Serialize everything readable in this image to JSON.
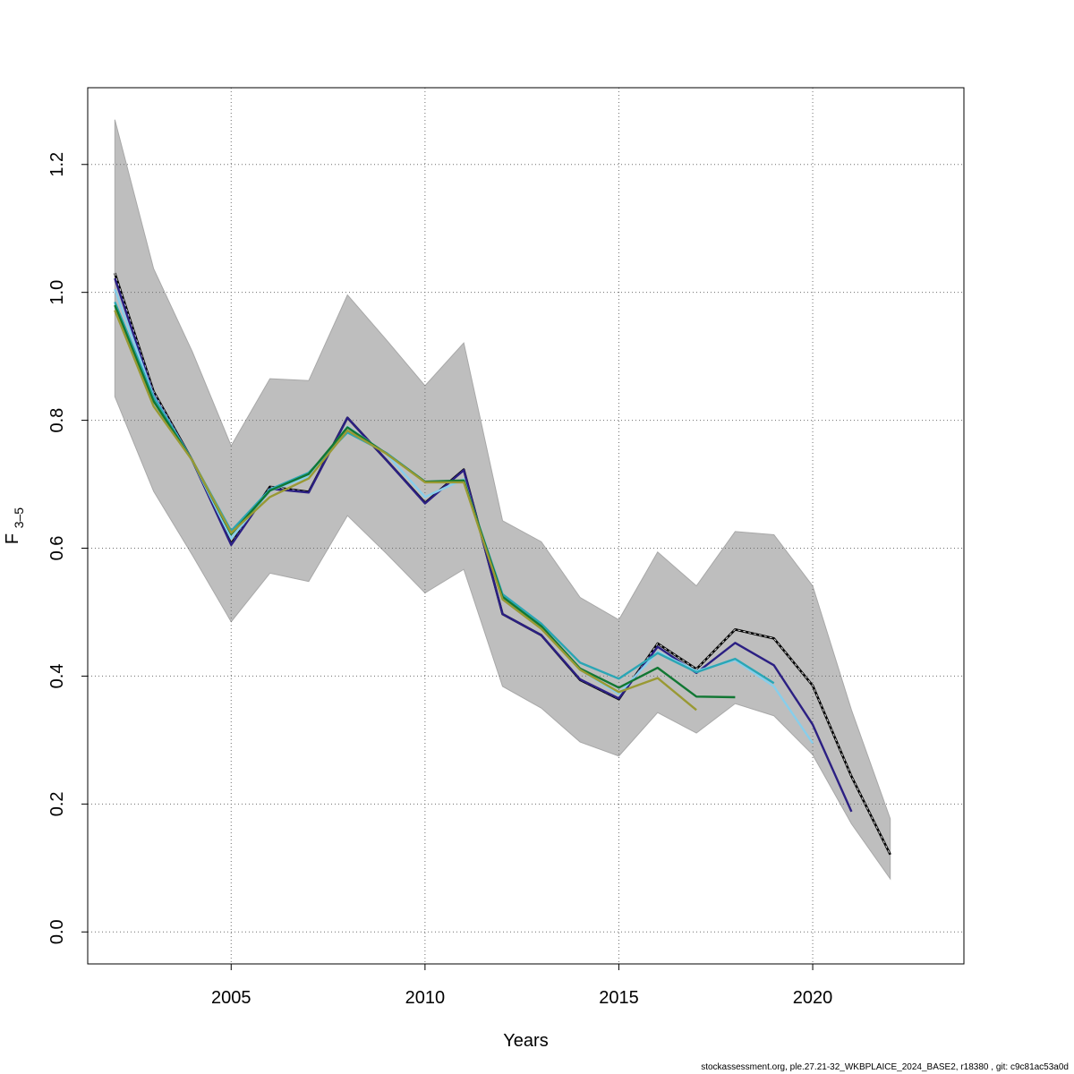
{
  "chart_data": {
    "type": "line",
    "title": "",
    "xlabel": "Years",
    "ylabel_main": "F",
    "ylabel_sub": "3–5",
    "xlim": [
      2001.3,
      2023.9
    ],
    "ylim": [
      -0.05,
      1.32
    ],
    "x_ticks": [
      2005,
      2010,
      2015,
      2020
    ],
    "y_ticks": [
      0.0,
      0.2,
      0.4,
      0.6,
      0.8,
      1.0,
      1.2
    ],
    "y_tick_labels": [
      "0.0",
      "0.2",
      "0.4",
      "0.6",
      "0.8",
      "1.0",
      "1.2"
    ],
    "grid": true,
    "band": {
      "x": [
        2002,
        2003,
        2004,
        2005,
        2006,
        2007,
        2008,
        2009,
        2010,
        2011,
        2012,
        2013,
        2014,
        2015,
        2016,
        2017,
        2018,
        2019,
        2020,
        2021,
        2022
      ],
      "lower": [
        0.837,
        0.689,
        0.589,
        0.485,
        0.561,
        0.548,
        0.651,
        0.592,
        0.53,
        0.567,
        0.384,
        0.35,
        0.297,
        0.275,
        0.343,
        0.311,
        0.357,
        0.338,
        0.277,
        0.169,
        0.083
      ],
      "upper": [
        1.27,
        1.037,
        0.907,
        0.76,
        0.865,
        0.862,
        0.996,
        0.926,
        0.854,
        0.921,
        0.643,
        0.61,
        0.523,
        0.488,
        0.594,
        0.541,
        0.626,
        0.621,
        0.541,
        0.347,
        0.177
      ],
      "color": "#bebebe"
    },
    "series": [
      {
        "color": "#000000",
        "dashed": true,
        "x": [
          2002,
          2003,
          2004,
          2005,
          2006,
          2007,
          2008,
          2009,
          2010,
          2011,
          2012,
          2013,
          2014,
          2015,
          2016,
          2017,
          2018,
          2019,
          2020,
          2021,
          2022
        ],
        "values": [
          1.03,
          0.845,
          0.737,
          0.607,
          0.696,
          0.688,
          0.804,
          0.738,
          0.671,
          0.723,
          0.497,
          0.464,
          0.394,
          0.364,
          0.451,
          0.411,
          0.473,
          0.459,
          0.385,
          0.243,
          0.121
        ]
      },
      {
        "color": "#2b1f83",
        "dashed": false,
        "x": [
          2002,
          2003,
          2004,
          2005,
          2006,
          2007,
          2008,
          2009,
          2010,
          2011,
          2012,
          2013,
          2014,
          2015,
          2016,
          2017,
          2018,
          2019,
          2020,
          2021
        ],
        "values": [
          1.022,
          0.84,
          0.737,
          0.605,
          0.693,
          0.687,
          0.804,
          0.738,
          0.67,
          0.722,
          0.497,
          0.464,
          0.395,
          0.365,
          0.446,
          0.405,
          0.452,
          0.417,
          0.324,
          0.188
        ]
      },
      {
        "color": "#87ceeb",
        "dashed": false,
        "x": [
          2002,
          2003,
          2004,
          2005,
          2006,
          2007,
          2008,
          2009,
          2010,
          2011,
          2012,
          2013,
          2014,
          2015,
          2016,
          2017,
          2018,
          2019,
          2020
        ],
        "values": [
          1.005,
          0.838,
          0.737,
          0.615,
          0.69,
          0.712,
          0.79,
          0.748,
          0.68,
          0.708,
          0.52,
          0.475,
          0.41,
          0.372,
          0.438,
          0.408,
          0.425,
          0.384,
          0.295
        ]
      },
      {
        "color": "#2aa6b5",
        "dashed": false,
        "x": [
          2002,
          2003,
          2004,
          2005,
          2006,
          2007,
          2008,
          2009,
          2010,
          2011,
          2012,
          2013,
          2014,
          2015,
          2016,
          2017,
          2018,
          2019
        ],
        "values": [
          0.985,
          0.836,
          0.737,
          0.627,
          0.692,
          0.718,
          0.781,
          0.749,
          0.704,
          0.705,
          0.528,
          0.482,
          0.421,
          0.396,
          0.436,
          0.406,
          0.427,
          0.389
        ]
      },
      {
        "color": "#117733",
        "dashed": false,
        "x": [
          2002,
          2003,
          2004,
          2005,
          2006,
          2007,
          2008,
          2009,
          2010,
          2011,
          2012,
          2013,
          2014,
          2015,
          2016,
          2017,
          2018
        ],
        "values": [
          0.98,
          0.83,
          0.737,
          0.622,
          0.69,
          0.716,
          0.789,
          0.748,
          0.704,
          0.706,
          0.524,
          0.478,
          0.412,
          0.382,
          0.413,
          0.368,
          0.367
        ]
      },
      {
        "color": "#999933",
        "dashed": false,
        "x": [
          2002,
          2003,
          2004,
          2005,
          2006,
          2007,
          2008,
          2009,
          2010,
          2011,
          2012,
          2013,
          2014,
          2015,
          2016,
          2017
        ],
        "values": [
          0.972,
          0.822,
          0.737,
          0.624,
          0.68,
          0.709,
          0.784,
          0.748,
          0.703,
          0.703,
          0.52,
          0.474,
          0.41,
          0.375,
          0.397,
          0.347
        ]
      }
    ]
  },
  "credit": "stockassessment.org, ple.27.21-32_WKBPLAICE_2024_BASE2, r18380 , git: c9c81ac53a0d"
}
